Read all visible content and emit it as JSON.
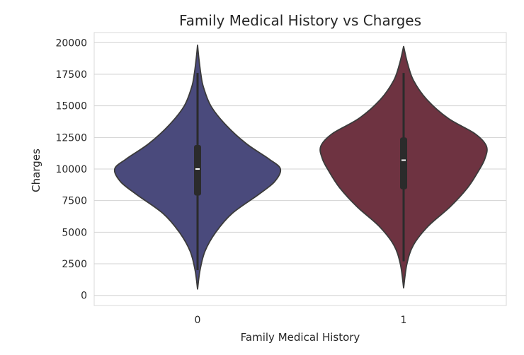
{
  "chart_data": {
    "type": "violin",
    "title": "Family Medical History vs Charges",
    "xlabel": "Family Medical History",
    "ylabel": "Charges",
    "categories": [
      "0",
      "1"
    ],
    "ylim": [
      -800,
      20800
    ],
    "yticks": [
      0,
      2500,
      5000,
      7500,
      10000,
      12500,
      15000,
      17500,
      20000
    ],
    "grid": true,
    "colors": [
      "#4a4a7c",
      "#6e3341"
    ],
    "series": [
      {
        "category": "0",
        "min": 500,
        "max": 19800,
        "q1": 7900,
        "median": 10000,
        "q3": 11900,
        "whisker_low": 2000,
        "whisker_high": 17600,
        "density": [
          [
            500,
            0.0
          ],
          [
            2000,
            0.03
          ],
          [
            3500,
            0.09
          ],
          [
            5000,
            0.22
          ],
          [
            6500,
            0.42
          ],
          [
            8000,
            0.74
          ],
          [
            9000,
            0.93
          ],
          [
            10000,
            1.0
          ],
          [
            10800,
            0.86
          ],
          [
            12000,
            0.59
          ],
          [
            13500,
            0.34
          ],
          [
            15000,
            0.16
          ],
          [
            16500,
            0.07
          ],
          [
            17500,
            0.04
          ],
          [
            18800,
            0.015
          ],
          [
            19800,
            0.0
          ]
        ]
      },
      {
        "category": "1",
        "min": 600,
        "max": 19700,
        "q1": 8400,
        "median": 10700,
        "q3": 12500,
        "whisker_low": 2700,
        "whisker_high": 17600,
        "density": [
          [
            600,
            0.0
          ],
          [
            2500,
            0.04
          ],
          [
            4000,
            0.12
          ],
          [
            5500,
            0.3
          ],
          [
            7000,
            0.56
          ],
          [
            8500,
            0.77
          ],
          [
            9800,
            0.9
          ],
          [
            10800,
            0.98
          ],
          [
            11800,
            1.0
          ],
          [
            12800,
            0.86
          ],
          [
            14000,
            0.54
          ],
          [
            15500,
            0.28
          ],
          [
            17000,
            0.12
          ],
          [
            18300,
            0.05
          ],
          [
            19700,
            0.0
          ]
        ]
      }
    ]
  }
}
